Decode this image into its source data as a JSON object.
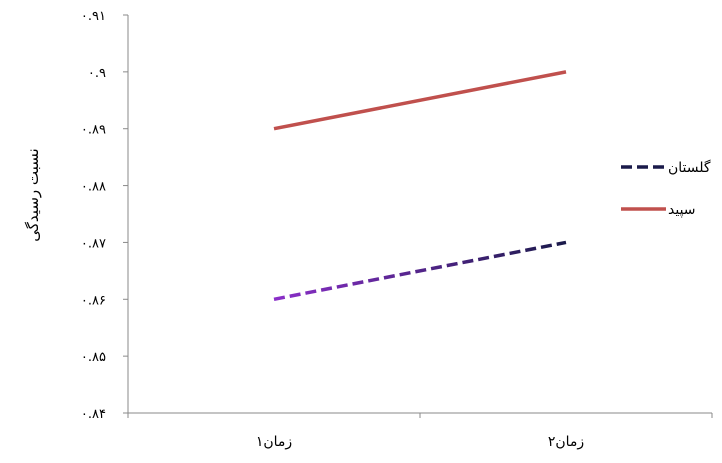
{
  "chart_data": {
    "type": "line",
    "title": "",
    "xlabel": "",
    "ylabel": "نسبت رسیدگی",
    "categories": [
      "زمان۱",
      "زمان۲"
    ],
    "ylim": [
      0.84,
      0.91
    ],
    "yticks": [
      {
        "value": 0.84,
        "label": "۰.۸۴"
      },
      {
        "value": 0.85,
        "label": "۰.۸۵"
      },
      {
        "value": 0.86,
        "label": "۰.۸۶"
      },
      {
        "value": 0.87,
        "label": "۰.۸۷"
      },
      {
        "value": 0.88,
        "label": "۰.۸۸"
      },
      {
        "value": 0.89,
        "label": "۰.۸۹"
      },
      {
        "value": 0.9,
        "label": "۰.۹"
      },
      {
        "value": 0.91,
        "label": "۰.۹۱"
      }
    ],
    "grid": false,
    "legend_position": "right",
    "series": [
      {
        "name": "گلستان",
        "values": [
          0.86,
          0.87
        ],
        "style": "dashed",
        "color_start": "#8b2fc9",
        "color_end": "#1a1a4a"
      },
      {
        "name": "سپید",
        "values": [
          0.89,
          0.9
        ],
        "style": "solid",
        "color": "#c0504d"
      }
    ]
  }
}
